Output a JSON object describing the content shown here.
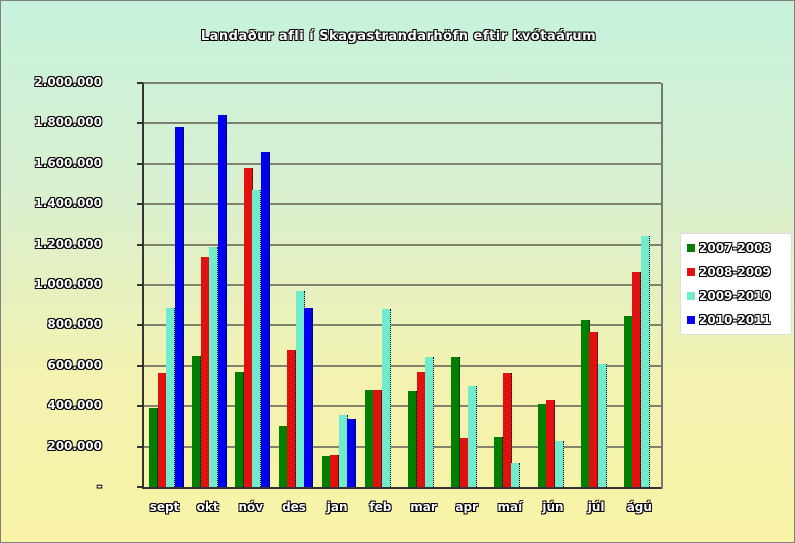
{
  "chart_data": {
    "type": "bar",
    "title": "Landaður afli í Skagastrandarhöfn eftir kvótaárum",
    "xlabel": "",
    "ylabel": "",
    "ylim": [
      0,
      2000000
    ],
    "y_ticks": [
      "-",
      "200.000",
      "400.000",
      "600.000",
      "800.000",
      "1.000.000",
      "1.200.000",
      "1.400.000",
      "1.600.000",
      "1.800.000",
      "2.000.000"
    ],
    "grid": true,
    "legend_position": "right",
    "categories": [
      "sept",
      "okt",
      "nóv",
      "des",
      "jan",
      "feb",
      "mar",
      "apr",
      "maí",
      "jún",
      "júl",
      "ágú"
    ],
    "series": [
      {
        "name": "2007-2008",
        "color": "#007f00",
        "values": [
          390000,
          650000,
          570000,
          300000,
          155000,
          480000,
          475000,
          645000,
          250000,
          410000,
          825000,
          845000
        ]
      },
      {
        "name": "2008-2009",
        "color": "#e31010",
        "values": [
          565000,
          1140000,
          1580000,
          680000,
          160000,
          480000,
          570000,
          245000,
          565000,
          430000,
          765000,
          1065000
        ]
      },
      {
        "name": "2009-2010",
        "color": "#70eccc",
        "values": [
          885000,
          1190000,
          1470000,
          970000,
          355000,
          880000,
          645000,
          500000,
          120000,
          230000,
          610000,
          1245000
        ]
      },
      {
        "name": "2010-2011",
        "color": "#0000f0",
        "values": [
          1780000,
          1840000,
          1660000,
          885000,
          335000,
          null,
          null,
          null,
          null,
          null,
          null,
          null
        ]
      }
    ]
  }
}
